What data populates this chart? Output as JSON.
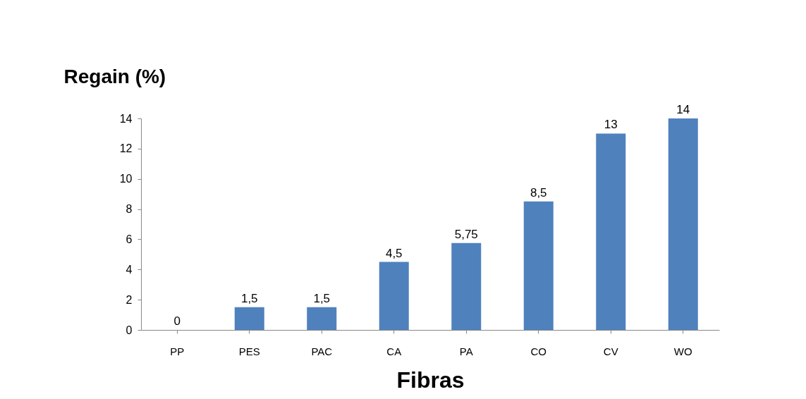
{
  "chart_data": {
    "type": "bar",
    "xlabel": "Fibras",
    "ylabel": "Regain (%)",
    "categories": [
      "PP",
      "PES",
      "PAC",
      "CA",
      "PA",
      "CO",
      "CV",
      "WO"
    ],
    "values": [
      0,
      1.5,
      1.5,
      4.5,
      5.75,
      8.5,
      13,
      14
    ],
    "value_labels": [
      "0",
      "1,5",
      "1,5",
      "4,5",
      "5,75",
      "8,5",
      "13",
      "14"
    ],
    "color": "#4f81bd",
    "ylim": [
      0,
      14
    ],
    "yticks": [
      0,
      2,
      4,
      6,
      8,
      10,
      12,
      14
    ],
    "grid": false
  }
}
